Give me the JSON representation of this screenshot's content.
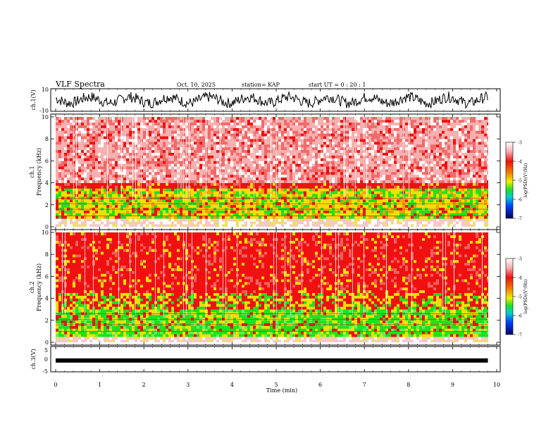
{
  "header": {
    "title": "VLF Spectra",
    "date": "Oct. 10, 2025",
    "station": "station= KAP",
    "start": "start  UT =   0 : 20 : 1"
  },
  "chart_data": [
    {
      "type": "line",
      "name": "ch1-waveform",
      "ylabel": "ch.1(V)",
      "ylim": [
        -10,
        10
      ],
      "yticks": [
        "10",
        "-10"
      ],
      "x_range_min": [
        0,
        9.8
      ],
      "description_values": "noisy signal oscillating roughly between -8 and 8 V"
    },
    {
      "type": "heatmap",
      "name": "ch1-spectrogram",
      "ylabel_top": "ch.1",
      "ylabel": "Frequency  (kHz)",
      "ylim": [
        0,
        10
      ],
      "yticks": [
        "0",
        "2",
        "4",
        "6",
        "8",
        "10"
      ],
      "bands_khz": [
        {
          "from": 0,
          "to": 0.7,
          "level": "pale"
        },
        {
          "from": 0.7,
          "to": 3.5,
          "level": "yellow-green"
        },
        {
          "from": 3.5,
          "to": 4.0,
          "level": "red"
        },
        {
          "from": 4.0,
          "to": 10,
          "level": "light-red"
        }
      ],
      "colorbar": {
        "label": "log(PSD)(V²/Hz)",
        "ticks": [
          "-3",
          "-4",
          "-5",
          "-6",
          "-7"
        ],
        "range": [
          -7,
          -3
        ]
      }
    },
    {
      "type": "heatmap",
      "name": "ch2-spectrogram",
      "ylabel_top": "ch.2",
      "ylabel": "Frequency  (kHz)",
      "ylim": [
        0,
        10
      ],
      "yticks": [
        "0",
        "2",
        "4",
        "6",
        "8",
        "10"
      ],
      "bands_khz": [
        {
          "from": 0,
          "to": 0.5,
          "level": "pale"
        },
        {
          "from": 0.5,
          "to": 3.0,
          "level": "green-yellow"
        },
        {
          "from": 3.0,
          "to": 4.5,
          "level": "red-yellow"
        },
        {
          "from": 4.5,
          "to": 10,
          "level": "red"
        }
      ],
      "colorbar": {
        "label": "log(PSD)(V²/Hz)",
        "ticks": [
          "-3",
          "-4",
          "-5",
          "-6",
          "-7"
        ],
        "range": [
          -7,
          -3
        ]
      }
    },
    {
      "type": "line",
      "name": "ch3-waveform",
      "ylabel": "ch.3(V)",
      "ylim": [
        -5,
        5
      ],
      "yticks": [
        "5",
        "0",
        "-5"
      ],
      "band_level_v": -0.6,
      "x_range_min": [
        0,
        9.8
      ]
    }
  ],
  "xaxis": {
    "label": "Time  (min)",
    "ticks": [
      "0",
      "1",
      "2",
      "3",
      "4",
      "5",
      "6",
      "7",
      "8",
      "9",
      "10"
    ],
    "range": [
      0,
      10
    ]
  },
  "colors": {
    "red": "#f01010",
    "lightred": "#f6b0b0",
    "yellow": "#f0e000",
    "green": "#20e020",
    "black": "#000000"
  }
}
